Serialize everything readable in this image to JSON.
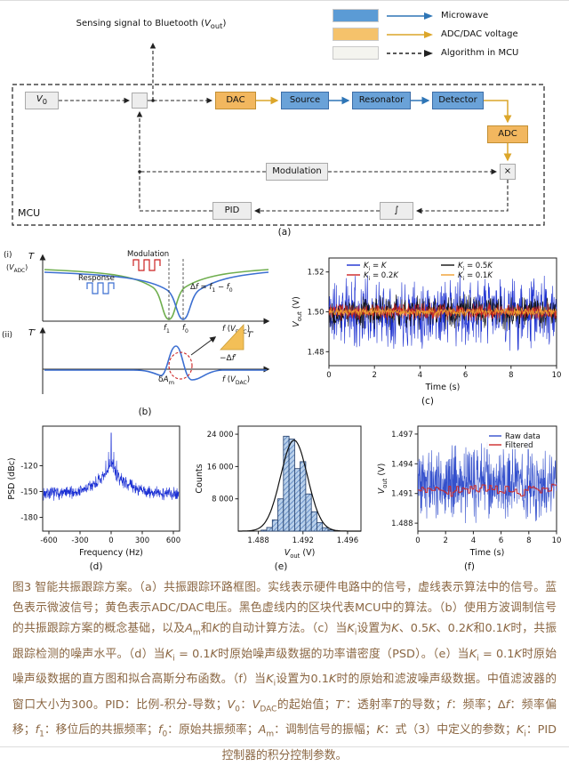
{
  "theme": {
    "page_bg": "#ffffff",
    "microwave_blue": "#2e75b6",
    "box_blue": "#6aa2d8",
    "box_blue_border": "#3d6ea8",
    "dac_orange": "#f2b75f",
    "dac_orange_border": "#c28f33",
    "arrow_yellow": "#dca62a",
    "grey_box": "#ededed",
    "grey_box_border": "#aaaaaa",
    "wire_black": "#222222",
    "caption_color": "#8a6642",
    "curve_green": "#6fae4e",
    "curve_blue": "#3c6fd1",
    "accent_red": "#cc2222"
  },
  "diagram": {
    "sensing": [
      {
        "t": "Sensing signal to Bluetooth ("
      },
      {
        "t": "V",
        "i": 1
      },
      {
        "t": "out",
        "s": 1
      },
      {
        "t": ")"
      }
    ],
    "v0_label": [
      {
        "t": "V",
        "i": 1
      },
      {
        "t": "0",
        "s": 1
      }
    ],
    "blocks": {
      "dac": "DAC",
      "source": "Source",
      "resonator": "Resonator",
      "detector": "Detector",
      "adc": "ADC",
      "modulation": "Modulation",
      "multiplier": "×",
      "pid": "PID",
      "integrator": "∫",
      "mcu": "MCU"
    },
    "legend": [
      {
        "label": "Microwave",
        "swatch": "#5b9bd5",
        "arrow_color": "#2e75b6"
      },
      {
        "label": "ADC/DAC voltage",
        "swatch": "#f5c26b",
        "arrow_color": "#dca62a"
      },
      {
        "label": "Algorithm in MCU",
        "swatch": "#f4f4ef",
        "arrow_color": "#222222"
      }
    ],
    "panel_label": "(a)"
  },
  "panels": {
    "b": {
      "label": "(b)",
      "i_tag": "(i)",
      "ii_tag": "(ii)",
      "t_axis": [
        {
          "t": "T",
          "i": 1
        }
      ],
      "t_axis_unit": [
        {
          "t": "("
        },
        {
          "t": "V",
          "i": 1
        },
        {
          "t": "ADC",
          "s": 1
        },
        {
          "t": ")"
        }
      ],
      "modulation": "Modulation",
      "response": "Response",
      "delta_f": [
        {
          "t": "Δ"
        },
        {
          "t": "f",
          "i": 1
        },
        {
          "t": " = "
        },
        {
          "t": "f",
          "i": 1
        },
        {
          "t": "1",
          "s": 1
        },
        {
          "t": " − "
        },
        {
          "t": "f",
          "i": 1
        },
        {
          "t": "0",
          "s": 1
        }
      ],
      "f_axis": [
        {
          "t": "f",
          "i": 1
        },
        {
          "t": " ("
        },
        {
          "t": "V",
          "i": 1
        },
        {
          "t": "DAC",
          "s": 1
        },
        {
          "t": ")"
        }
      ],
      "f1": [
        {
          "t": "f",
          "i": 1
        },
        {
          "t": "1",
          "s": 1
        }
      ],
      "f0": [
        {
          "t": "f",
          "i": 1
        },
        {
          "t": "0",
          "s": 1
        }
      ],
      "tprime_axis": [
        {
          "t": "T",
          "i": 1
        },
        {
          "t": "′"
        }
      ],
      "delta_am": [
        {
          "t": "δ"
        },
        {
          "t": "A",
          "i": 1
        },
        {
          "t": "m",
          "s": 1
        }
      ],
      "tri_t": [
        {
          "t": "T",
          "i": 1
        },
        {
          "t": "′"
        }
      ],
      "tri_df": [
        {
          "t": "−Δ"
        },
        {
          "t": "f",
          "i": 1
        },
        {
          "t": "′"
        }
      ]
    },
    "c": {
      "label": "(c)",
      "type": "line",
      "xlabel": "Time (s)",
      "ylabel": [
        {
          "t": "V",
          "i": 1
        },
        {
          "t": "out",
          "s": 1
        },
        {
          "t": " (V)"
        }
      ],
      "xlim": [
        0,
        10
      ],
      "ylim": [
        1.473,
        1.527
      ],
      "xticks": [
        {
          "v": 0,
          "l": "0"
        },
        {
          "v": 2,
          "l": "2"
        },
        {
          "v": 4,
          "l": "4"
        },
        {
          "v": 6,
          "l": "6"
        },
        {
          "v": 8,
          "l": "8"
        },
        {
          "v": 10,
          "l": "10"
        }
      ],
      "yticks": [
        {
          "v": 1.48,
          "l": "1.48"
        },
        {
          "v": 1.5,
          "l": "1.50"
        },
        {
          "v": 1.52,
          "l": "1.52"
        }
      ],
      "points": 650,
      "series": [
        {
          "name": [
            {
              "t": "K",
              "i": 1
            },
            {
              "t": "i",
              "s": 1
            },
            {
              "t": " = "
            },
            {
              "t": "K",
              "i": 1
            }
          ],
          "color": "#1b2fd0",
          "mean": 1.5,
          "noise": 0.0125,
          "seed": 11
        },
        {
          "name": [
            {
              "t": "K",
              "i": 1
            },
            {
              "t": "i",
              "s": 1
            },
            {
              "t": " = 0.5"
            },
            {
              "t": "K",
              "i": 1
            }
          ],
          "color": "#111111",
          "mean": 1.5,
          "noise": 0.006,
          "seed": 22
        },
        {
          "name": [
            {
              "t": "K",
              "i": 1
            },
            {
              "t": "i",
              "s": 1
            },
            {
              "t": " = 0.2"
            },
            {
              "t": "K",
              "i": 1
            }
          ],
          "color": "#cc2323",
          "mean": 1.5,
          "noise": 0.003,
          "seed": 33
        },
        {
          "name": [
            {
              "t": "K",
              "i": 1
            },
            {
              "t": "i",
              "s": 1
            },
            {
              "t": " = 0.1"
            },
            {
              "t": "K",
              "i": 1
            }
          ],
          "color": "#f0a030",
          "mean": 1.5,
          "noise": 0.0016,
          "seed": 44
        }
      ]
    },
    "d": {
      "label": "(d)",
      "type": "psd",
      "xlabel": "Frequency (Hz)",
      "ylabel": "PSD (dBc)",
      "xlim": [
        -660,
        660
      ],
      "ylim": [
        -196,
        -74
      ],
      "xticks": [
        {
          "v": -600,
          "l": "-600"
        },
        {
          "v": -300,
          "l": "-300"
        },
        {
          "v": 0,
          "l": "0"
        },
        {
          "v": 300,
          "l": "300"
        },
        {
          "v": 600,
          "l": "600"
        }
      ],
      "yticks": [
        {
          "v": -120,
          "l": "-120"
        },
        {
          "v": -150,
          "l": "-150"
        },
        {
          "v": -180,
          "l": "-180"
        }
      ],
      "color": "#1a2fd4",
      "floor": -152,
      "hump": 20,
      "hump_sigma": 150,
      "pedestal": 16,
      "pedestal_sigma": 26,
      "noise_db": 9,
      "spike_db": -82,
      "sidebands": [
        {
          "f": 25,
          "v": -104
        },
        {
          "f": 52,
          "v": -114
        }
      ],
      "seed": 7
    },
    "e": {
      "label": "(e)",
      "type": "histogram",
      "xlabel": [
        {
          "t": "V",
          "i": 1
        },
        {
          "t": "out",
          "s": 1
        },
        {
          "t": " (V)"
        }
      ],
      "ylabel": "Counts",
      "xlim": [
        1.4862,
        1.4972
      ],
      "ylim": [
        0,
        26000
      ],
      "xticks": [
        {
          "v": 1.488,
          "l": "1.488"
        },
        {
          "v": 1.492,
          "l": "1.492"
        },
        {
          "v": 1.496,
          "l": "1.496"
        }
      ],
      "yticks": [
        {
          "v": 8000,
          "l": "8 000"
        },
        {
          "v": 16000,
          "l": "16 000"
        },
        {
          "v": 24000,
          "l": "24 000"
        }
      ],
      "bin_width": 0.0005,
      "bins": [
        {
          "x": 1.4885,
          "c": 250
        },
        {
          "x": 1.489,
          "c": 900
        },
        {
          "x": 1.4895,
          "c": 2800
        },
        {
          "x": 1.49,
          "c": 8000
        },
        {
          "x": 1.4905,
          "c": 23500
        },
        {
          "x": 1.491,
          "c": 22800
        },
        {
          "x": 1.4915,
          "c": 15500
        },
        {
          "x": 1.492,
          "c": 17200
        },
        {
          "x": 1.4925,
          "c": 9200
        },
        {
          "x": 1.493,
          "c": 4800
        },
        {
          "x": 1.4935,
          "c": 2100
        },
        {
          "x": 1.494,
          "c": 850
        },
        {
          "x": 1.4945,
          "c": 300
        }
      ],
      "fit": {
        "mu": 1.4912,
        "sigma": 0.0012,
        "amp": 22500
      },
      "bar_fill": "#b9d0ea",
      "bar_hatch": "#3f6fb5",
      "bar_edge": "#1f3a66",
      "fit_color": "#111111"
    },
    "f": {
      "label": "(f)",
      "type": "line",
      "xlabel": "Time (s)",
      "ylabel": [
        {
          "t": "V",
          "i": 1
        },
        {
          "t": "out",
          "s": 1
        },
        {
          "t": " (V)"
        }
      ],
      "xlim": [
        0,
        10
      ],
      "ylim": [
        1.4872,
        1.4978
      ],
      "xticks": [
        {
          "v": 0,
          "l": "0"
        },
        {
          "v": 2,
          "l": "2"
        },
        {
          "v": 4,
          "l": "4"
        },
        {
          "v": 6,
          "l": "6"
        },
        {
          "v": 8,
          "l": "8"
        },
        {
          "v": 10,
          "l": "10"
        }
      ],
      "yticks": [
        {
          "v": 1.488,
          "l": "1.488"
        },
        {
          "v": 1.491,
          "l": "1.491"
        },
        {
          "v": 1.494,
          "l": "1.494"
        },
        {
          "v": 1.497,
          "l": "1.497"
        }
      ],
      "points": 500,
      "raw": {
        "name": "Raw data",
        "color": "#3450cc",
        "mean": 1.4922,
        "noise": 0.0026,
        "seed": 5
      },
      "filtered": {
        "name": "Filtered",
        "color": "#cc2a2a",
        "mean": 1.4913,
        "noise": 0.0008,
        "seed": 9
      }
    }
  },
  "caption": {
    "segments": [
      {
        "t": "图3 智能共振跟踪方案。（a）共振跟踪环路框图。实线表示硬件电路中的信号，虚线表示算法中的信号。蓝色表示微波信号；黄色表示ADC/DAC电压。黑色虚线内的区块代表MCU中的算法。（b）使用方波调制信号的共振跟踪方案的概念基础，以及"
      },
      {
        "t": "A",
        "i": 1
      },
      {
        "t": "m",
        "s": 1
      },
      {
        "t": "和"
      },
      {
        "t": "K",
        "i": 1
      },
      {
        "t": "的自动计算方法。（c）当"
      },
      {
        "t": "K",
        "i": 1
      },
      {
        "t": "i",
        "s": 1
      },
      {
        "t": "设置为"
      },
      {
        "t": "K",
        "i": 1
      },
      {
        "t": "、0.5"
      },
      {
        "t": "K",
        "i": 1
      },
      {
        "t": "、0.2"
      },
      {
        "t": "K",
        "i": 1
      },
      {
        "t": "和0.1"
      },
      {
        "t": "K",
        "i": 1
      },
      {
        "t": "时，共振跟踪检测的噪声水平。（d）当"
      },
      {
        "t": "K",
        "i": 1
      },
      {
        "t": "i",
        "s": 1
      },
      {
        "t": " = 0.1"
      },
      {
        "t": "K",
        "i": 1
      },
      {
        "t": "时原始噪声级数据的功率谱密度（PSD）。（e）当"
      },
      {
        "t": "K",
        "i": 1
      },
      {
        "t": "i",
        "s": 1
      },
      {
        "t": " = 0.1"
      },
      {
        "t": "K",
        "i": 1
      },
      {
        "t": "时原始噪声级数据的直方图和拟合高斯分布函数。（f）当"
      },
      {
        "t": "K",
        "i": 1
      },
      {
        "t": "i",
        "s": 1
      },
      {
        "t": "设置为0.1"
      },
      {
        "t": "K",
        "i": 1
      },
      {
        "t": "时的原始和滤波噪声级数据。中值滤波器的窗口大小为300。PID：比例-积分-导数；"
      },
      {
        "t": "V",
        "i": 1
      },
      {
        "t": "0",
        "s": 1
      },
      {
        "t": "："
      },
      {
        "t": "V",
        "i": 1
      },
      {
        "t": "DAC",
        "s": 1
      },
      {
        "t": "的起始值；"
      },
      {
        "t": "T",
        "i": 1
      },
      {
        "t": "′：透射率"
      },
      {
        "t": "T",
        "i": 1
      },
      {
        "t": "的导数；"
      },
      {
        "t": "f",
        "i": 1
      },
      {
        "t": "：频率；Δ"
      },
      {
        "t": "f",
        "i": 1
      },
      {
        "t": "：频率偏移；"
      },
      {
        "t": "f",
        "i": 1
      },
      {
        "t": "1",
        "s": 1
      },
      {
        "t": "：移位后的共振频率；"
      },
      {
        "t": "f",
        "i": 1
      },
      {
        "t": "0",
        "s": 1
      },
      {
        "t": "：原始共振频率；"
      },
      {
        "t": "A",
        "i": 1
      },
      {
        "t": "m",
        "s": 1
      },
      {
        "t": "：调制信号的振幅；"
      },
      {
        "t": "K",
        "i": 1
      },
      {
        "t": "：式（3）中定义的参数；"
      },
      {
        "t": "K",
        "i": 1
      },
      {
        "t": "i",
        "s": 1
      },
      {
        "t": "：PID控制器的积分控制参数。"
      }
    ]
  }
}
